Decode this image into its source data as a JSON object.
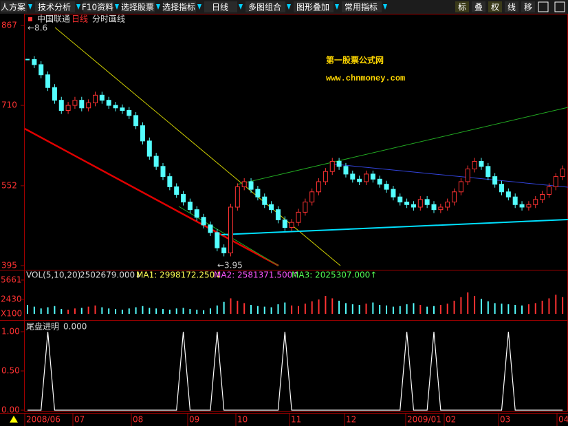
{
  "toolbar": {
    "buttons": [
      "人方案",
      "技术分析",
      "F10资料",
      "选择股票",
      "选择指标",
      "日线",
      "多图组合",
      "图形叠加",
      "常用指标"
    ],
    "right_buttons": [
      "标",
      "叠",
      "权",
      "线",
      "移"
    ]
  },
  "chart_data": {
    "type": "candlestick",
    "stock": "中国联通",
    "period": "日线",
    "draw_label": "分时画线",
    "watermark_title": "第一股票公式网",
    "watermark_url": "www.chnmoney.com",
    "high_annotation": "←8.6",
    "low_annotation": "←3.95",
    "up_color": "#ff3232",
    "down_color": "#54ffff",
    "closes": [
      800,
      790,
      770,
      745,
      720,
      700,
      710,
      720,
      705,
      715,
      730,
      720,
      710,
      705,
      700,
      690,
      670,
      640,
      610,
      590,
      570,
      550,
      535,
      520,
      505,
      490,
      475,
      460,
      430,
      420,
      510,
      550,
      560,
      545,
      530,
      515,
      505,
      485,
      470,
      480,
      500,
      520,
      540,
      560,
      580,
      600,
      590,
      575,
      565,
      560,
      575,
      565,
      555,
      545,
      530,
      520,
      515,
      510,
      525,
      515,
      505,
      510,
      520,
      540,
      560,
      585,
      600,
      590,
      570,
      555,
      540,
      530,
      515,
      510,
      515,
      525,
      535,
      550,
      570,
      585
    ],
    "ylim": [
      395,
      867
    ],
    "yticks": [
      867,
      710,
      552,
      395
    ],
    "x_labels": [
      "2008/06",
      "07",
      "08",
      "09",
      "10",
      "11",
      "12",
      "2009/01",
      "02",
      "03",
      "04"
    ],
    "volume": {
      "legend": "VOL(5,10,20)",
      "last": "2502679.000↓",
      "ma1": "MA1: 2998172.250↓",
      "ma2": "MA2: 2581371.500↑",
      "ma3": "MA3: 2025307.000↑",
      "unit_label": "X100",
      "values": [
        1500,
        1200,
        900,
        1100,
        1300,
        800,
        700,
        900,
        1000,
        1200,
        1400,
        1100,
        900,
        800,
        700,
        900,
        1100,
        1300,
        1000,
        900,
        800,
        700,
        900,
        1000,
        800,
        700,
        600,
        900,
        1400,
        2000,
        2600,
        2200,
        1800,
        1500,
        1300,
        1200,
        1100,
        1600,
        1900,
        1400,
        1300,
        1700,
        2100,
        2400,
        3000,
        2600,
        2200,
        1800,
        1600,
        1500,
        1700,
        1900,
        1500,
        1400,
        1200,
        1300,
        1600,
        1800,
        1500,
        1200,
        1300,
        1500,
        1700,
        2200,
        2800,
        3600,
        3000,
        2500,
        2100,
        1800,
        1700,
        1600,
        1500,
        1400,
        1600,
        1800,
        2200,
        2600,
        3200,
        2800
      ],
      "ylim": [
        0,
        6924
      ],
      "yticks": [
        5661,
        2430
      ]
    },
    "indicator": {
      "name": "尾盘进明",
      "value_label": "0.000",
      "values": [
        0,
        0,
        0,
        1,
        0,
        0,
        0,
        0,
        0,
        0,
        0,
        0,
        0,
        0,
        0,
        0,
        0,
        0,
        0,
        0,
        0,
        0,
        0,
        1,
        0,
        0,
        0,
        0,
        1,
        0,
        0,
        0,
        0,
        0,
        0,
        0,
        0,
        0,
        1,
        0,
        0,
        0,
        0,
        0,
        0,
        0,
        0,
        0,
        0,
        0,
        0,
        0,
        0,
        0,
        0,
        0,
        1,
        0,
        0,
        0,
        1,
        0,
        0,
        0,
        0,
        0,
        0,
        0,
        0,
        0,
        0,
        1,
        0,
        0,
        0,
        0,
        0,
        0,
        0,
        0
      ],
      "ylim": [
        0,
        1
      ],
      "yticks": [
        {
          "value": 1,
          "label": "1.00"
        },
        {
          "value": 0.5,
          "label": "0.50"
        },
        {
          "value": 0,
          "label": "0.00"
        }
      ]
    }
  }
}
